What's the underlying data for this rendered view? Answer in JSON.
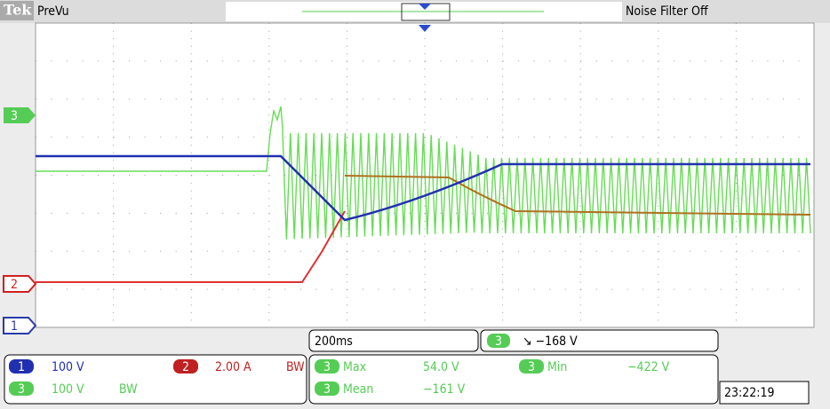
{
  "header": {
    "brand": "Tek",
    "mode": "PreVu",
    "filter": "Noise Filter Off"
  },
  "markers": {
    "ch3": "3",
    "ch2": "2",
    "ch1": "1"
  },
  "timebase": "200ms",
  "trigger": {
    "channel": "3",
    "level": "↘ −168 V"
  },
  "channels": [
    {
      "label": "1",
      "scale": "100 V"
    },
    {
      "label": "2",
      "scale": "2.00 A",
      "bw": "BW"
    },
    {
      "label": "3",
      "scale": "100 V",
      "bw": "BW"
    }
  ],
  "measurements": [
    {
      "channel": "3",
      "name": "Max",
      "value": "54.0 V"
    },
    {
      "channel": "3",
      "name": "Min",
      "value": "−422 V"
    },
    {
      "channel": "3",
      "name": "Mean",
      "value": "−161 V"
    }
  ],
  "clock": "23:22:19"
}
